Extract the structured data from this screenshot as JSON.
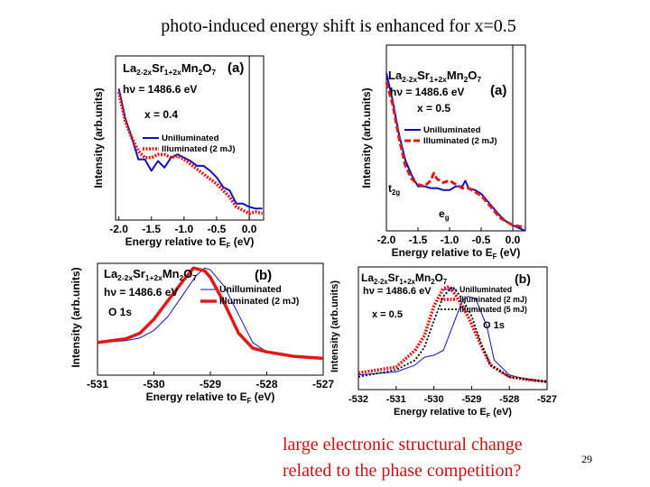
{
  "slide": {
    "title": "photo-induced energy shift is enhanced for x=0.5",
    "conclusion_lines": [
      "large electronic structural change",
      "related to the phase competition?"
    ],
    "page_number": "29"
  },
  "colors": {
    "unilluminated": "#1010c0",
    "illuminated_2mJ": "#e01818",
    "illuminated_5mJ": "#000000",
    "conclusion_text": "#d01010"
  },
  "chart_data": [
    {
      "type": "line",
      "panel_label": "(a)",
      "formula": [
        "La",
        "2-2x",
        "Sr",
        "1+2x",
        "Mn",
        "2",
        "O",
        "7"
      ],
      "photon_energy": "hν = 1486.6 eV",
      "composition": "x = 0.4",
      "xlabel": "Energy relative to E",
      "xlabel_sub": "F",
      "xlabel_unit": " (eV)",
      "ylabel": "Intensity (arb.units)",
      "xlim": [
        -2.05,
        0.22
      ],
      "ylim": [
        0,
        1
      ],
      "xticks": [
        -2.0,
        -1.5,
        -1.0,
        -0.5,
        0.0
      ],
      "xtick_labels": [
        "-2.0",
        "-1.5",
        "-1.0",
        "-0.5",
        "0.0"
      ],
      "vline": 0.0,
      "annotations": [],
      "series": [
        {
          "name": "Unilluminated",
          "style": "solid",
          "color_key": "unilluminated",
          "x": [
            -2.0,
            -1.9,
            -1.8,
            -1.7,
            -1.6,
            -1.5,
            -1.4,
            -1.3,
            -1.2,
            -1.1,
            -1.0,
            -0.9,
            -0.8,
            -0.7,
            -0.6,
            -0.5,
            -0.4,
            -0.3,
            -0.2,
            -0.1,
            0.0,
            0.1,
            0.2
          ],
          "y": [
            0.8,
            0.62,
            0.5,
            0.37,
            0.37,
            0.3,
            0.36,
            0.32,
            0.38,
            0.4,
            0.38,
            0.36,
            0.33,
            0.33,
            0.3,
            0.26,
            0.2,
            0.18,
            0.1,
            0.1,
            0.08,
            0.07,
            0.07
          ]
        },
        {
          "name": "Illuminated (2 mJ)",
          "style": "dotted-thick",
          "color_key": "illuminated_2mJ",
          "x": [
            -2.0,
            -1.9,
            -1.8,
            -1.7,
            -1.6,
            -1.5,
            -1.4,
            -1.3,
            -1.2,
            -1.1,
            -1.0,
            -0.9,
            -0.8,
            -0.7,
            -0.6,
            -0.5,
            -0.4,
            -0.3,
            -0.2,
            -0.1,
            0.0,
            0.1,
            0.2
          ],
          "y": [
            0.78,
            0.6,
            0.5,
            0.42,
            0.38,
            0.38,
            0.4,
            0.4,
            0.38,
            0.39,
            0.37,
            0.34,
            0.31,
            0.28,
            0.25,
            0.22,
            0.18,
            0.14,
            0.08,
            0.06,
            0.04,
            0.05,
            0.04
          ]
        }
      ]
    },
    {
      "type": "line",
      "panel_label": "(a)",
      "formula": [
        "La",
        "2-2x",
        "Sr",
        "1+2x",
        "Mn",
        "2",
        "O",
        "7"
      ],
      "photon_energy": "hν = 1486.6 eV",
      "composition": "x = 0.5",
      "xlabel": "Energy relative to E",
      "xlabel_sub": "F",
      "xlabel_unit": " (eV)",
      "ylabel": "Intensity (arb.units)",
      "xlim": [
        -2.0,
        0.2
      ],
      "ylim": [
        0,
        1
      ],
      "xticks": [
        -2.0,
        -1.5,
        -1.0,
        -0.5,
        0.0
      ],
      "xtick_labels": [
        "-2.0",
        "-1.5",
        "-1.0",
        "-0.5",
        "0.0"
      ],
      "vline": 0.0,
      "annotations": [
        {
          "text": "t",
          "sub": "2g"
        },
        {
          "text": "e",
          "sub": "g"
        }
      ],
      "series": [
        {
          "name": "Unilluminated",
          "style": "solid",
          "color_key": "unilluminated",
          "x": [
            -2.0,
            -1.9,
            -1.8,
            -1.7,
            -1.6,
            -1.5,
            -1.4,
            -1.3,
            -1.2,
            -1.1,
            -1.0,
            -0.9,
            -0.8,
            -0.75,
            -0.7,
            -0.6,
            -0.5,
            -0.4,
            -0.3,
            -0.2,
            -0.1,
            0.0,
            0.2
          ],
          "y": [
            0.85,
            0.7,
            0.52,
            0.38,
            0.3,
            0.24,
            0.24,
            0.23,
            0.23,
            0.22,
            0.22,
            0.24,
            0.24,
            0.27,
            0.23,
            0.22,
            0.2,
            0.16,
            0.12,
            0.08,
            0.05,
            0.03,
            0.0
          ]
        },
        {
          "name": "Illuminated (2 mJ)",
          "style": "dashed-thick",
          "color_key": "illuminated_2mJ",
          "x": [
            -2.0,
            -1.9,
            -1.8,
            -1.7,
            -1.6,
            -1.5,
            -1.4,
            -1.3,
            -1.25,
            -1.2,
            -1.1,
            -1.0,
            -0.9,
            -0.8,
            -0.7,
            -0.6,
            -0.5,
            -0.4,
            -0.3,
            -0.2,
            -0.1,
            0.0,
            0.2
          ],
          "y": [
            0.8,
            0.68,
            0.5,
            0.35,
            0.28,
            0.25,
            0.24,
            0.27,
            0.31,
            0.28,
            0.26,
            0.27,
            0.25,
            0.23,
            0.23,
            0.21,
            0.19,
            0.15,
            0.11,
            0.07,
            0.05,
            0.03,
            0.02
          ]
        }
      ]
    },
    {
      "type": "line",
      "panel_label": "(b)",
      "formula": [
        "La",
        "2-2x",
        "Sr",
        "1+2x",
        "Mn",
        "2",
        "O",
        "7"
      ],
      "photon_energy": "hν = 1486.6 eV",
      "core_level": "O 1s",
      "xlabel": "Energy relative to E",
      "xlabel_sub": "F",
      "xlabel_unit": " (eV)",
      "ylabel": "Intensity (arb.units)",
      "xlim": [
        -531,
        -527
      ],
      "ylim": [
        -0.15,
        1.05
      ],
      "xticks": [
        -531,
        -530,
        -529,
        -528,
        -527
      ],
      "xtick_labels": [
        "-531",
        "-530",
        "-529",
        "-528",
        "-527"
      ],
      "annotations": [],
      "series": [
        {
          "name": "Unilluminated",
          "style": "solid-thin",
          "color_key": "unilluminated",
          "x": [
            -531,
            -530.5,
            -530.25,
            -530,
            -529.75,
            -529.5,
            -529.25,
            -529.1,
            -529,
            -528.75,
            -528.5,
            -528.25,
            -528,
            -527.75,
            -527.5,
            -527
          ],
          "y": [
            0.2,
            0.22,
            0.25,
            0.33,
            0.48,
            0.7,
            0.92,
            1.0,
            0.98,
            0.8,
            0.5,
            0.2,
            0.1,
            0.07,
            0.05,
            0.03
          ]
        },
        {
          "name": "Illuminated (2 mJ)",
          "style": "solid-thick",
          "color_key": "illuminated_2mJ",
          "x": [
            -531,
            -530.5,
            -530.25,
            -530,
            -529.75,
            -529.5,
            -529.3,
            -529.1,
            -529,
            -528.75,
            -528.5,
            -528.25,
            -528,
            -527.5,
            -527
          ],
          "y": [
            0.2,
            0.24,
            0.3,
            0.45,
            0.65,
            0.85,
            1.0,
            0.97,
            0.9,
            0.62,
            0.3,
            0.14,
            0.1,
            0.05,
            0.03
          ]
        }
      ]
    },
    {
      "type": "line",
      "panel_label": "(b)",
      "formula": [
        "La",
        "2-2x",
        "Sr",
        "1+2x",
        "Mn",
        "2",
        "O",
        "7"
      ],
      "photon_energy": "hν = 1486.6 eV",
      "composition": "x = 0.5",
      "core_level": "O 1s",
      "xlabel": "Energy relative to E",
      "xlabel_sub": "F",
      "xlabel_unit": " (eV)",
      "ylabel": "Intensity (arb.units)",
      "xlim": [
        -532,
        -527
      ],
      "ylim": [
        -0.05,
        1.2
      ],
      "xticks": [
        -532,
        -531,
        -530,
        -529,
        -528,
        -527
      ],
      "xtick_labels": [
        "-532",
        "-531",
        "-530",
        "-529",
        "-528",
        "-527"
      ],
      "annotations": [],
      "series": [
        {
          "name": "Unilluminated",
          "style": "solid-thin",
          "color_key": "unilluminated",
          "x": [
            -532,
            -531,
            -530.5,
            -530.25,
            -530,
            -529.75,
            -529.5,
            -529.25,
            -529.1,
            -528.9,
            -528.6,
            -528.4,
            -528,
            -527.5,
            -527
          ],
          "y": [
            0.1,
            0.13,
            0.2,
            0.28,
            0.3,
            0.35,
            0.6,
            0.85,
            0.9,
            0.88,
            0.6,
            0.25,
            0.1,
            0.05,
            0.03
          ]
        },
        {
          "name": "Illuminated (2 mJ)",
          "style": "dotted-thick",
          "color_key": "illuminated_2mJ",
          "x": [
            -532,
            -531,
            -530.5,
            -530.25,
            -530,
            -529.75,
            -529.6,
            -529.4,
            -529.1,
            -528.75,
            -528.5,
            -528,
            -527.5,
            -527
          ],
          "y": [
            0.12,
            0.18,
            0.35,
            0.5,
            0.8,
            0.98,
            1.0,
            0.9,
            0.7,
            0.4,
            0.2,
            0.08,
            0.05,
            0.03
          ]
        },
        {
          "name": "Illuminated (5 mJ)",
          "style": "dotted",
          "color_key": "illuminated_5mJ",
          "x": [
            -532,
            -531,
            -530.5,
            -530.25,
            -530,
            -529.75,
            -529.5,
            -529.25,
            -529,
            -528.75,
            -528.5,
            -528,
            -527
          ],
          "y": [
            0.08,
            0.15,
            0.25,
            0.38,
            0.65,
            0.9,
            1.0,
            0.88,
            0.7,
            0.42,
            0.2,
            0.08,
            0.03
          ]
        }
      ]
    }
  ]
}
